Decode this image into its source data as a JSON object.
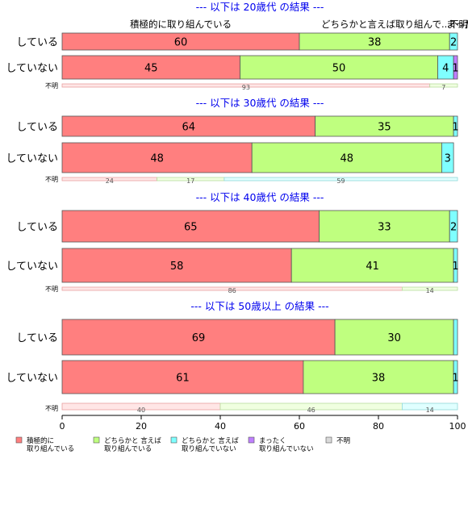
{
  "chart_data": {
    "type": "bar",
    "orientation": "horizontal",
    "stacked": true,
    "xlim": [
      0,
      100
    ],
    "x_ticks": [
      "0",
      "20",
      "40",
      "60",
      "80",
      "100"
    ],
    "column_labels": [
      "積極的に取り組んでいる",
      "どちらかと言えば取り組んで...",
      "まった...",
      "不明"
    ],
    "categories": [
      "積極的に取り組んでいる",
      "どちらかと言えば取り組んでいる",
      "どちらかと言えば取り組んでいない",
      "まったく取り組んでいない",
      "不明"
    ],
    "legend": {
      "position": "bottom",
      "items": [
        {
          "label_lines": [
            "積極的に",
            "取り組んでいる"
          ],
          "color": "#ff7f7f"
        },
        {
          "label_lines": [
            "どちらかと 言えば",
            "取り組んでいる"
          ],
          "color": "#bfff7f"
        },
        {
          "label_lines": [
            "どちらかと 言えば",
            "取り組んでいない"
          ],
          "color": "#7fffff"
        },
        {
          "label_lines": [
            "まったく",
            "取り組んでいない"
          ],
          "color": "#bf7fff"
        },
        {
          "label_lines": [
            "不明"
          ],
          "color": "#d9d9d9"
        }
      ]
    },
    "unknown_label": "不明",
    "panels": [
      {
        "title": "--- 以下は 20歳代 の結果 ---",
        "rows": [
          {
            "label": "している",
            "values": [
              60,
              38,
              2,
              0,
              0
            ],
            "labels": [
              "60",
              "38",
              "2",
              "",
              ""
            ]
          },
          {
            "label": "していない",
            "values": [
              45,
              50,
              4,
              1,
              0
            ],
            "labels": [
              "45",
              "50",
              "4",
              "1",
              ""
            ]
          }
        ],
        "unknown_values": [
          93,
          7,
          0
        ],
        "unknown_labels": [
          "93",
          "7",
          ""
        ]
      },
      {
        "title": "--- 以下は 30歳代 の結果 ---",
        "rows": [
          {
            "label": "している",
            "values": [
              64,
              35,
              1,
              0,
              0
            ],
            "labels": [
              "64",
              "35",
              "1",
              "",
              ""
            ]
          },
          {
            "label": "していない",
            "values": [
              48,
              48,
              3,
              0,
              0
            ],
            "labels": [
              "48",
              "48",
              "3",
              "",
              ""
            ]
          }
        ],
        "unknown_values": [
          24,
          17,
          59
        ],
        "unknown_labels": [
          "24",
          "17",
          "59"
        ]
      },
      {
        "title": "--- 以下は 40歳代 の結果 ---",
        "rows": [
          {
            "label": "している",
            "values": [
              65,
              33,
              2,
              0,
              0
            ],
            "labels": [
              "65",
              "33",
              "2",
              "",
              ""
            ]
          },
          {
            "label": "していない",
            "values": [
              58,
              41,
              1,
              0,
              0
            ],
            "labels": [
              "58",
              "41",
              "1",
              "",
              ""
            ]
          }
        ],
        "unknown_values": [
          86,
          14,
          0
        ],
        "unknown_labels": [
          "86",
          "14",
          ""
        ]
      },
      {
        "title": "--- 以下は 50歳以上 の結果 ---",
        "rows": [
          {
            "label": "している",
            "values": [
              69,
              30,
              1,
              0,
              0
            ],
            "labels": [
              "69",
              "30",
              "",
              "",
              ""
            ]
          },
          {
            "label": "していない",
            "values": [
              61,
              38,
              1,
              0,
              0
            ],
            "labels": [
              "61",
              "38",
              "1",
              "",
              ""
            ]
          }
        ],
        "unknown_values": [
          40,
          46,
          14
        ],
        "unknown_labels": [
          "40",
          "46",
          "14"
        ]
      }
    ]
  }
}
